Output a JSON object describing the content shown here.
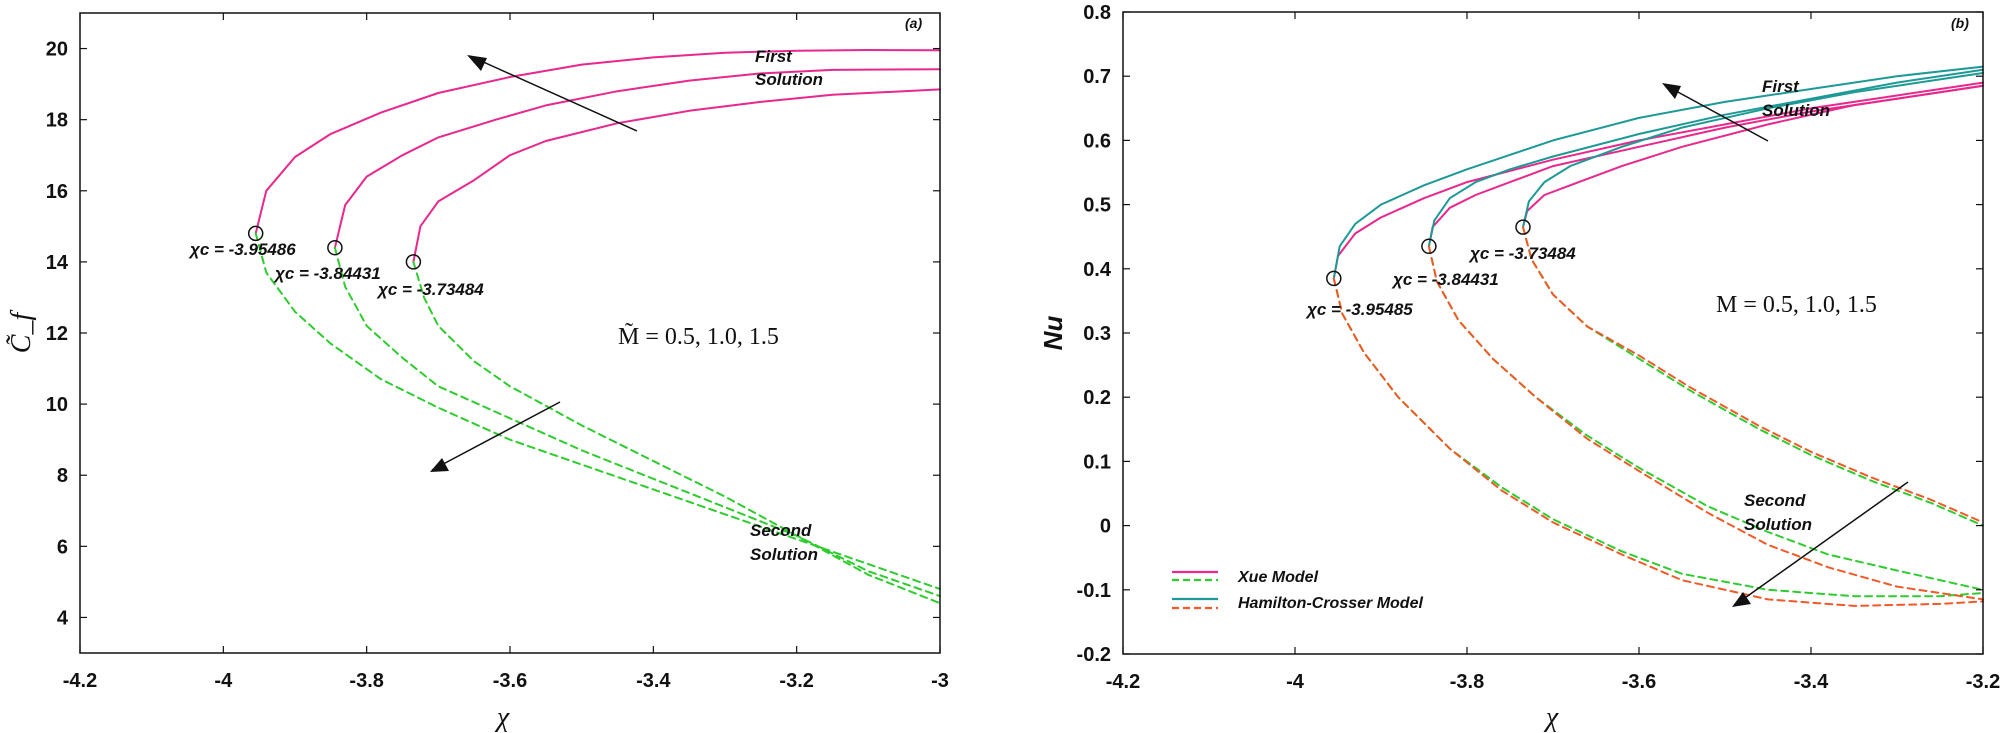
{
  "colors": {
    "xue_solid": "#e8288c",
    "hamilton_solid": "#1e9a96",
    "xue_dashed": "#2ecc2e",
    "hamilton_dashed": "#f05a28",
    "axis": "#111111"
  },
  "chart_data": [
    {
      "type": "line",
      "panel_label": "(a)",
      "xlabel": "χ",
      "ylabel": "C̃_f",
      "xlim": [
        -4.2,
        -3.0
      ],
      "ylim": [
        3,
        21
      ],
      "xticks": [
        "-4.2",
        "-4",
        "-3.8",
        "-3.6",
        "-3.4",
        "-3.2",
        "-3"
      ],
      "yticks": [
        "4",
        "6",
        "8",
        "10",
        "12",
        "14",
        "16",
        "18",
        "20"
      ],
      "parameter_label": "M̃ = 0.5, 1.0, 1.5",
      "annotations": [
        "First Solution",
        "Second Solution"
      ],
      "critical_labels": [
        "χc = -3.95486",
        "χc = -3.84431",
        "χc = -3.73484"
      ],
      "critical_points": [
        {
          "x": -3.95486,
          "y": 14.8
        },
        {
          "x": -3.84431,
          "y": 14.4
        },
        {
          "x": -3.73484,
          "y": 14.0
        }
      ],
      "series": [
        {
          "style": "xue_solid",
          "points": [
            [
              -3.95486,
              14.8
            ],
            [
              -3.94,
              16.0
            ],
            [
              -3.9,
              16.95
            ],
            [
              -3.85,
              17.6
            ],
            [
              -3.78,
              18.2
            ],
            [
              -3.7,
              18.75
            ],
            [
              -3.6,
              19.2
            ],
            [
              -3.5,
              19.55
            ],
            [
              -3.4,
              19.75
            ],
            [
              -3.3,
              19.88
            ],
            [
              -3.2,
              19.94
            ],
            [
              -3.1,
              19.96
            ],
            [
              -3.0,
              19.95
            ]
          ]
        },
        {
          "style": "xue_solid",
          "points": [
            [
              -3.84431,
              14.4
            ],
            [
              -3.83,
              15.6
            ],
            [
              -3.8,
              16.4
            ],
            [
              -3.75,
              17.0
            ],
            [
              -3.7,
              17.5
            ],
            [
              -3.62,
              18.0
            ],
            [
              -3.55,
              18.4
            ],
            [
              -3.45,
              18.8
            ],
            [
              -3.35,
              19.1
            ],
            [
              -3.25,
              19.3
            ],
            [
              -3.15,
              19.4
            ],
            [
              -3.0,
              19.42
            ]
          ]
        },
        {
          "style": "xue_solid",
          "points": [
            [
              -3.73484,
              14.0
            ],
            [
              -3.725,
              15.0
            ],
            [
              -3.7,
              15.7
            ],
            [
              -3.65,
              16.3
            ],
            [
              -3.6,
              17.0
            ],
            [
              -3.55,
              17.4
            ],
            [
              -3.45,
              17.9
            ],
            [
              -3.35,
              18.25
            ],
            [
              -3.25,
              18.5
            ],
            [
              -3.15,
              18.7
            ],
            [
              -3.0,
              18.85
            ]
          ]
        },
        {
          "style": "xue_dashed",
          "points": [
            [
              -3.95486,
              14.8
            ],
            [
              -3.94,
              13.7
            ],
            [
              -3.9,
              12.6
            ],
            [
              -3.85,
              11.7
            ],
            [
              -3.78,
              10.7
            ],
            [
              -3.7,
              9.9
            ],
            [
              -3.6,
              9.0
            ],
            [
              -3.5,
              8.3
            ],
            [
              -3.4,
              7.6
            ],
            [
              -3.3,
              6.9
            ],
            [
              -3.2,
              6.2
            ],
            [
              -3.1,
              5.5
            ],
            [
              -3.0,
              4.8
            ]
          ]
        },
        {
          "style": "xue_dashed",
          "points": [
            [
              -3.84431,
              14.4
            ],
            [
              -3.83,
              13.3
            ],
            [
              -3.8,
              12.2
            ],
            [
              -3.75,
              11.3
            ],
            [
              -3.7,
              10.5
            ],
            [
              -3.6,
              9.6
            ],
            [
              -3.5,
              8.7
            ],
            [
              -3.4,
              7.9
            ],
            [
              -3.3,
              7.1
            ],
            [
              -3.2,
              6.3
            ],
            [
              -3.1,
              5.3
            ],
            [
              -3.0,
              4.6
            ]
          ]
        },
        {
          "style": "xue_dashed",
          "points": [
            [
              -3.73484,
              14.0
            ],
            [
              -3.72,
              13.0
            ],
            [
              -3.7,
              12.2
            ],
            [
              -3.65,
              11.2
            ],
            [
              -3.6,
              10.5
            ],
            [
              -3.5,
              9.4
            ],
            [
              -3.4,
              8.4
            ],
            [
              -3.3,
              7.4
            ],
            [
              -3.2,
              6.3
            ],
            [
              -3.1,
              5.2
            ],
            [
              -3.0,
              4.4
            ]
          ]
        }
      ]
    },
    {
      "type": "line",
      "panel_label": "(b)",
      "xlabel": "χ",
      "ylabel": "Nu",
      "xlim": [
        -4.2,
        -3.2
      ],
      "ylim": [
        -0.2,
        0.8
      ],
      "xticks": [
        "-4.2",
        "-4",
        "-3.8",
        "-3.6",
        "-3.4",
        "-3.2"
      ],
      "yticks": [
        "-0.2",
        "-0.1",
        "0",
        "0.1",
        "0.2",
        "0.3",
        "0.4",
        "0.5",
        "0.6",
        "0.7",
        "0.8"
      ],
      "parameter_label": "M = 0.5, 1.0, 1.5",
      "annotations": [
        "First Solution",
        "Second Solution"
      ],
      "critical_labels": [
        "χc = -3.95485",
        "χc = -3.84431",
        "χc = -3.73484"
      ],
      "critical_points": [
        {
          "x": -3.95485,
          "y": 0.385
        },
        {
          "x": -3.84431,
          "y": 0.435
        },
        {
          "x": -3.73484,
          "y": 0.465
        }
      ],
      "legend": [
        {
          "label": "Xue Model",
          "solid": "xue_solid",
          "dashed": "xue_dashed"
        },
        {
          "label": "Hamilton-Crosser Model",
          "solid": "hamilton_solid",
          "dashed": "hamilton_dashed"
        }
      ],
      "series": [
        {
          "style": "xue_solid",
          "points": [
            [
              -3.95485,
              0.385
            ],
            [
              -3.95,
              0.42
            ],
            [
              -3.93,
              0.455
            ],
            [
              -3.9,
              0.48
            ],
            [
              -3.85,
              0.51
            ],
            [
              -3.8,
              0.535
            ],
            [
              -3.7,
              0.57
            ],
            [
              -3.6,
              0.6
            ],
            [
              -3.5,
              0.625
            ],
            [
              -3.4,
              0.65
            ],
            [
              -3.3,
              0.67
            ],
            [
              -3.2,
              0.69
            ]
          ]
        },
        {
          "style": "hamilton_solid",
          "points": [
            [
              -3.95485,
              0.385
            ],
            [
              -3.948,
              0.435
            ],
            [
              -3.93,
              0.47
            ],
            [
              -3.9,
              0.5
            ],
            [
              -3.85,
              0.53
            ],
            [
              -3.8,
              0.555
            ],
            [
              -3.7,
              0.6
            ],
            [
              -3.6,
              0.635
            ],
            [
              -3.5,
              0.66
            ],
            [
              -3.4,
              0.68
            ],
            [
              -3.3,
              0.7
            ],
            [
              -3.2,
              0.715
            ]
          ]
        },
        {
          "style": "xue_solid",
          "points": [
            [
              -3.84431,
              0.435
            ],
            [
              -3.84,
              0.465
            ],
            [
              -3.82,
              0.495
            ],
            [
              -3.79,
              0.515
            ],
            [
              -3.75,
              0.535
            ],
            [
              -3.7,
              0.56
            ],
            [
              -3.6,
              0.59
            ],
            [
              -3.5,
              0.62
            ],
            [
              -3.4,
              0.645
            ],
            [
              -3.3,
              0.665
            ],
            [
              -3.2,
              0.685
            ]
          ]
        },
        {
          "style": "hamilton_solid",
          "points": [
            [
              -3.84431,
              0.435
            ],
            [
              -3.838,
              0.475
            ],
            [
              -3.82,
              0.51
            ],
            [
              -3.79,
              0.535
            ],
            [
              -3.75,
              0.555
            ],
            [
              -3.7,
              0.575
            ],
            [
              -3.6,
              0.61
            ],
            [
              -3.5,
              0.64
            ],
            [
              -3.4,
              0.665
            ],
            [
              -3.3,
              0.69
            ],
            [
              -3.2,
              0.71
            ]
          ]
        },
        {
          "style": "xue_solid",
          "points": [
            [
              -3.73484,
              0.465
            ],
            [
              -3.73,
              0.49
            ],
            [
              -3.71,
              0.515
            ],
            [
              -3.68,
              0.53
            ],
            [
              -3.62,
              0.56
            ],
            [
              -3.55,
              0.59
            ],
            [
              -3.45,
              0.625
            ],
            [
              -3.35,
              0.655
            ],
            [
              -3.25,
              0.675
            ],
            [
              -3.2,
              0.685
            ]
          ]
        },
        {
          "style": "hamilton_solid",
          "points": [
            [
              -3.73484,
              0.465
            ],
            [
              -3.728,
              0.505
            ],
            [
              -3.71,
              0.535
            ],
            [
              -3.68,
              0.56
            ],
            [
              -3.62,
              0.59
            ],
            [
              -3.55,
              0.62
            ],
            [
              -3.45,
              0.65
            ],
            [
              -3.35,
              0.675
            ],
            [
              -3.25,
              0.695
            ],
            [
              -3.2,
              0.705
            ]
          ]
        },
        {
          "style": "xue_dashed",
          "points": [
            [
              -3.95485,
              0.385
            ],
            [
              -3.945,
              0.33
            ],
            [
              -3.92,
              0.27
            ],
            [
              -3.88,
              0.2
            ],
            [
              -3.82,
              0.12
            ],
            [
              -3.76,
              0.06
            ],
            [
              -3.7,
              0.01
            ],
            [
              -3.62,
              -0.04
            ],
            [
              -3.55,
              -0.075
            ],
            [
              -3.45,
              -0.1
            ],
            [
              -3.35,
              -0.11
            ],
            [
              -3.25,
              -0.11
            ],
            [
              -3.2,
              -0.105
            ]
          ]
        },
        {
          "style": "hamilton_dashed",
          "points": [
            [
              -3.95485,
              0.385
            ],
            [
              -3.945,
              0.33
            ],
            [
              -3.92,
              0.27
            ],
            [
              -3.88,
              0.2
            ],
            [
              -3.82,
              0.12
            ],
            [
              -3.76,
              0.055
            ],
            [
              -3.7,
              0.005
            ],
            [
              -3.62,
              -0.045
            ],
            [
              -3.55,
              -0.085
            ],
            [
              -3.45,
              -0.115
            ],
            [
              -3.35,
              -0.125
            ],
            [
              -3.25,
              -0.122
            ],
            [
              -3.2,
              -0.118
            ]
          ]
        },
        {
          "style": "xue_dashed",
          "points": [
            [
              -3.84431,
              0.435
            ],
            [
              -3.835,
              0.38
            ],
            [
              -3.81,
              0.32
            ],
            [
              -3.77,
              0.26
            ],
            [
              -3.72,
              0.2
            ],
            [
              -3.66,
              0.14
            ],
            [
              -3.6,
              0.09
            ],
            [
              -3.52,
              0.03
            ],
            [
              -3.45,
              -0.01
            ],
            [
              -3.38,
              -0.045
            ],
            [
              -3.3,
              -0.07
            ],
            [
              -3.2,
              -0.1
            ]
          ]
        },
        {
          "style": "hamilton_dashed",
          "points": [
            [
              -3.84431,
              0.435
            ],
            [
              -3.835,
              0.38
            ],
            [
              -3.81,
              0.32
            ],
            [
              -3.77,
              0.26
            ],
            [
              -3.72,
              0.2
            ],
            [
              -3.66,
              0.135
            ],
            [
              -3.6,
              0.085
            ],
            [
              -3.52,
              0.02
            ],
            [
              -3.45,
              -0.03
            ],
            [
              -3.38,
              -0.065
            ],
            [
              -3.3,
              -0.095
            ],
            [
              -3.2,
              -0.115
            ]
          ]
        },
        {
          "style": "xue_dashed",
          "points": [
            [
              -3.73484,
              0.465
            ],
            [
              -3.725,
              0.415
            ],
            [
              -3.7,
              0.36
            ],
            [
              -3.66,
              0.31
            ],
            [
              -3.6,
              0.26
            ],
            [
              -3.54,
              0.21
            ],
            [
              -3.46,
              0.15
            ],
            [
              -3.4,
              0.11
            ],
            [
              -3.33,
              0.07
            ],
            [
              -3.26,
              0.035
            ],
            [
              -3.2,
              0.0
            ]
          ]
        },
        {
          "style": "hamilton_dashed",
          "points": [
            [
              -3.73484,
              0.465
            ],
            [
              -3.725,
              0.415
            ],
            [
              -3.7,
              0.36
            ],
            [
              -3.66,
              0.31
            ],
            [
              -3.6,
              0.265
            ],
            [
              -3.54,
              0.215
            ],
            [
              -3.46,
              0.155
            ],
            [
              -3.4,
              0.115
            ],
            [
              -3.33,
              0.075
            ],
            [
              -3.26,
              0.04
            ],
            [
              -3.2,
              0.005
            ]
          ]
        }
      ]
    }
  ]
}
